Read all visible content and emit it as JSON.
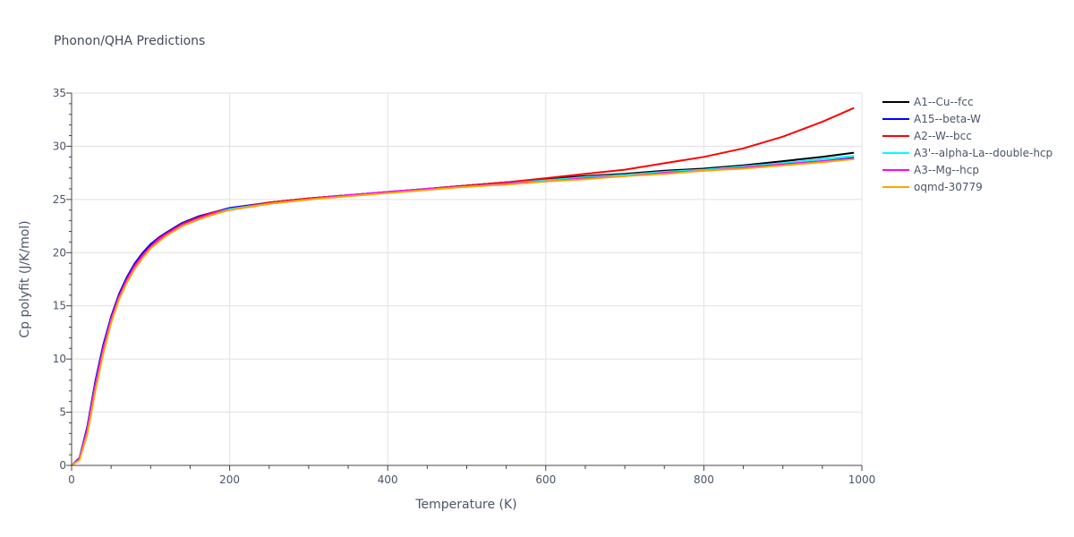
{
  "chart_data": {
    "type": "line",
    "title": "Phonon/QHA Predictions",
    "xlabel": "Temperature (K)",
    "ylabel": "Cp polyfit (J/K/mol)",
    "xlim": [
      0,
      1000
    ],
    "ylim": [
      0,
      35
    ],
    "xticks": [
      0,
      200,
      400,
      600,
      800,
      1000
    ],
    "yticks": [
      0,
      5,
      10,
      15,
      20,
      25,
      30,
      35
    ],
    "grid": true,
    "legend_position": "right",
    "x": [
      0,
      10,
      20,
      30,
      40,
      50,
      60,
      70,
      80,
      90,
      100,
      110,
      120,
      140,
      160,
      180,
      200,
      250,
      300,
      350,
      400,
      450,
      500,
      550,
      600,
      650,
      700,
      750,
      800,
      850,
      900,
      950,
      990
    ],
    "series": [
      {
        "name": "A1--Cu--fcc",
        "color": "#000000",
        "values": [
          0,
          0.6,
          3.5,
          7.6,
          11.0,
          13.8,
          15.9,
          17.5,
          18.8,
          19.8,
          20.6,
          21.3,
          21.8,
          22.7,
          23.3,
          23.8,
          24.1,
          24.7,
          25.1,
          25.4,
          25.7,
          26.0,
          26.3,
          26.6,
          26.9,
          27.2,
          27.4,
          27.7,
          27.9,
          28.2,
          28.6,
          29.0,
          29.4
        ]
      },
      {
        "name": "A15--beta-W",
        "color": "#0000ff",
        "values": [
          0,
          0.7,
          3.7,
          7.9,
          11.3,
          14.0,
          16.1,
          17.7,
          19.0,
          20.0,
          20.8,
          21.4,
          21.9,
          22.8,
          23.4,
          23.8,
          24.2,
          24.7,
          25.1,
          25.4,
          25.7,
          26.0,
          26.3,
          26.6,
          26.8,
          27.1,
          27.3,
          27.5,
          27.8,
          28.0,
          28.3,
          28.6,
          28.9
        ]
      },
      {
        "name": "A2--W--bcc",
        "color": "#ff0000",
        "values": [
          0,
          0.6,
          3.5,
          7.6,
          11.0,
          13.8,
          15.9,
          17.5,
          18.8,
          19.8,
          20.6,
          21.3,
          21.8,
          22.7,
          23.3,
          23.8,
          24.1,
          24.7,
          25.1,
          25.4,
          25.7,
          26.0,
          26.3,
          26.6,
          27.0,
          27.4,
          27.8,
          28.4,
          29.0,
          29.8,
          30.9,
          32.3,
          33.6
        ]
      },
      {
        "name": "A3'--alpha-La--double-hcp",
        "color": "#00ffff",
        "values": [
          0,
          0.6,
          3.4,
          7.5,
          10.9,
          13.7,
          15.8,
          17.4,
          18.7,
          19.7,
          20.5,
          21.2,
          21.7,
          22.6,
          23.2,
          23.7,
          24.1,
          24.6,
          25.0,
          25.4,
          25.7,
          26.0,
          26.2,
          26.5,
          26.8,
          27.1,
          27.3,
          27.6,
          27.8,
          28.1,
          28.4,
          28.8,
          29.1
        ]
      },
      {
        "name": "A3--Mg--hcp",
        "color": "#ff00ff",
        "values": [
          0,
          0.6,
          3.4,
          7.5,
          10.9,
          13.7,
          15.8,
          17.4,
          18.7,
          19.7,
          20.5,
          21.2,
          21.7,
          22.6,
          23.2,
          23.7,
          24.0,
          24.6,
          25.0,
          25.4,
          25.7,
          26.0,
          26.2,
          26.5,
          26.7,
          27.0,
          27.2,
          27.5,
          27.7,
          28.0,
          28.3,
          28.6,
          28.8
        ]
      },
      {
        "name": "oqmd-30779",
        "color": "#ffa500",
        "values": [
          0,
          0.5,
          3.0,
          7.0,
          10.5,
          13.4,
          15.6,
          17.2,
          18.5,
          19.5,
          20.4,
          21.0,
          21.6,
          22.5,
          23.1,
          23.6,
          24.0,
          24.6,
          25.0,
          25.3,
          25.6,
          25.9,
          26.2,
          26.4,
          26.7,
          26.9,
          27.2,
          27.4,
          27.7,
          27.9,
          28.2,
          28.5,
          28.8
        ]
      }
    ]
  }
}
